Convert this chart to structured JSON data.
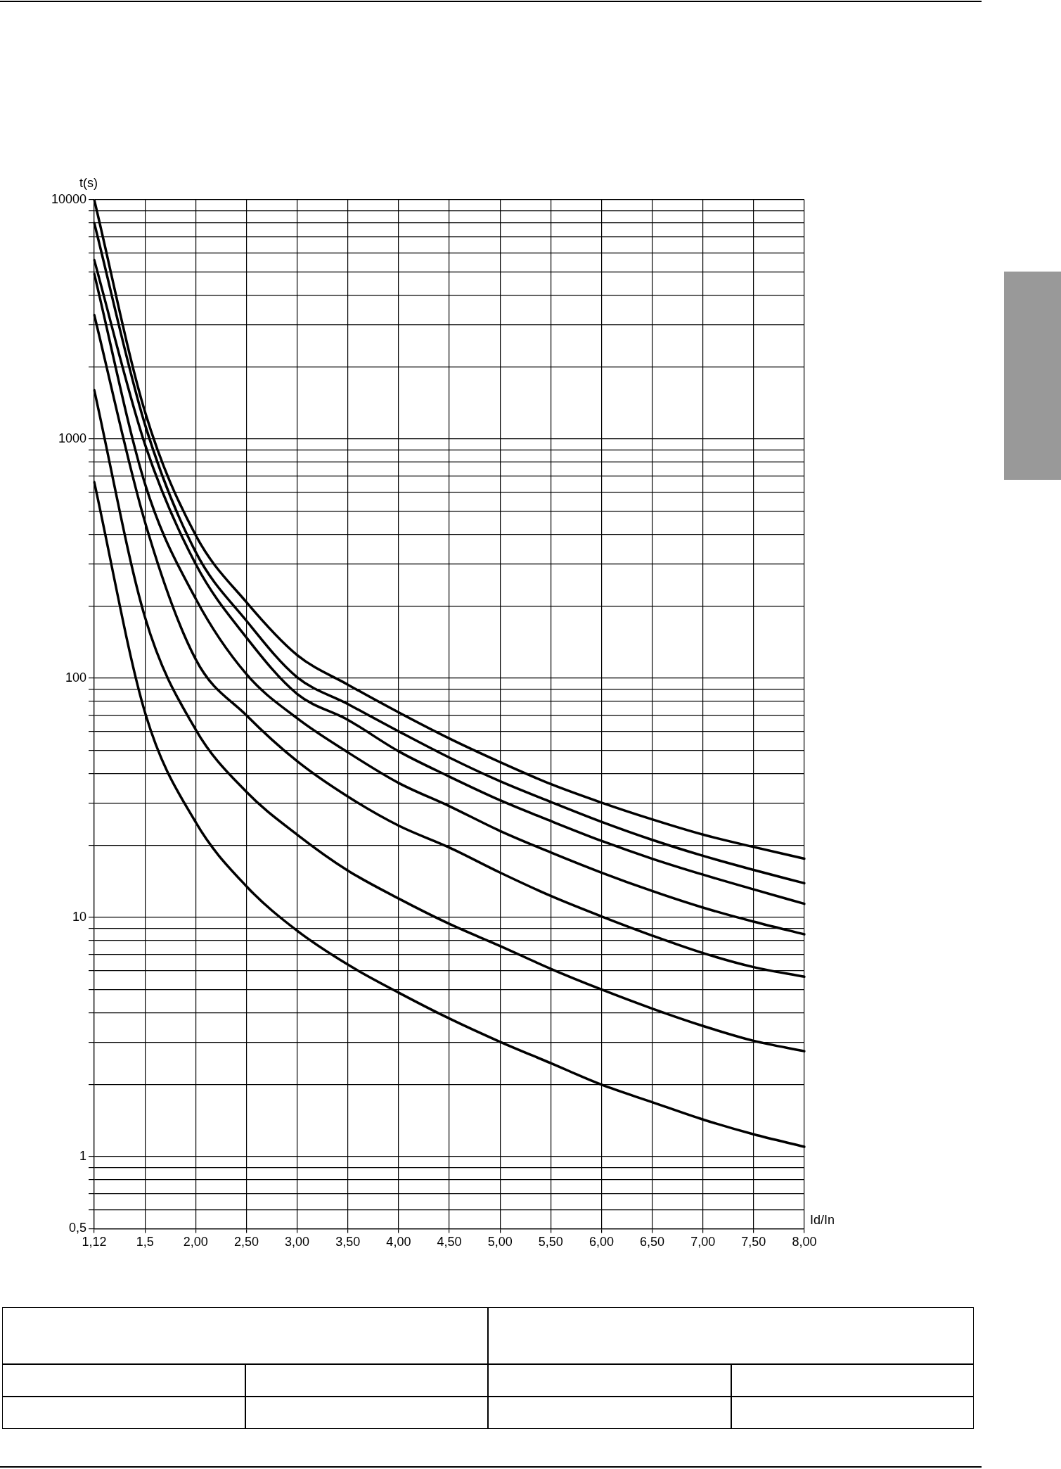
{
  "chart_data": {
    "type": "line",
    "xlabel": "Id/In",
    "ylabel": "t(s)",
    "categories": [
      "1,12",
      "1,5",
      "2,00",
      "2,50",
      "3,00",
      "3,50",
      "4,00",
      "4,50",
      "5,00",
      "5,50",
      "6,00",
      "6,50",
      "7,00",
      "7,50",
      "8,00"
    ],
    "series": [
      {
        "color": "#000000",
        "values": [
          10000,
          1300,
          396,
          208,
          125,
          94,
          72,
          56,
          44.6,
          36.1,
          30.2,
          25.7,
          22.2,
          19.7,
          17.6
        ]
      },
      {
        "color": "#000000",
        "values": [
          8000,
          1150,
          337,
          174,
          101,
          78,
          60,
          46.6,
          37.1,
          30.4,
          25.1,
          21.1,
          18.1,
          15.8,
          13.9
        ]
      },
      {
        "color": "#000000",
        "values": [
          5600,
          950,
          300,
          148,
          86,
          67,
          49.5,
          38.8,
          30.9,
          25.3,
          20.9,
          17.6,
          15.1,
          13.1,
          11.4
        ]
      },
      {
        "color": "#000000",
        "values": [
          4900,
          650,
          215,
          104,
          68,
          49,
          36.5,
          29.2,
          23,
          18.7,
          15.4,
          12.9,
          11,
          9.6,
          8.5
        ]
      },
      {
        "color": "#000000",
        "values": [
          3300,
          450,
          120,
          70,
          45,
          32,
          24.2,
          19.6,
          15.4,
          12.3,
          10.1,
          8.4,
          7.1,
          6.2,
          5.65
        ]
      },
      {
        "color": "#000000",
        "values": [
          1600,
          180,
          61,
          33.5,
          22.2,
          15.7,
          12,
          9.4,
          7.6,
          6.1,
          5,
          4.16,
          3.52,
          3.05,
          2.76
        ]
      },
      {
        "color": "#000000",
        "values": [
          660,
          72,
          25,
          13.5,
          8.8,
          6.35,
          4.85,
          3.78,
          3.02,
          2.46,
          2,
          1.69,
          1.43,
          1.24,
          1.1
        ]
      }
    ],
    "ylim": [
      0.5,
      10000
    ],
    "yticks": [
      {
        "value": 0.5,
        "label": "0,5"
      },
      {
        "value": 0.6,
        "label": null
      },
      {
        "value": 0.7,
        "label": null
      },
      {
        "value": 0.8,
        "label": null
      },
      {
        "value": 0.9,
        "label": null
      },
      1,
      {
        "value": 2,
        "label": null
      },
      {
        "value": 3,
        "label": null
      },
      {
        "value": 4,
        "label": null
      },
      {
        "value": 5,
        "label": null
      },
      {
        "value": 6,
        "label": null
      },
      {
        "value": 7,
        "label": null
      },
      {
        "value": 8,
        "label": null
      },
      {
        "value": 9,
        "label": null
      },
      10,
      {
        "value": 20,
        "label": null
      },
      {
        "value": 30,
        "label": null
      },
      {
        "value": 40,
        "label": null
      },
      {
        "value": 50,
        "label": null
      },
      {
        "value": 60,
        "label": null
      },
      {
        "value": 70,
        "label": null
      },
      {
        "value": 80,
        "label": null
      },
      {
        "value": 90,
        "label": null
      },
      100,
      {
        "value": 200,
        "label": null
      },
      {
        "value": 300,
        "label": null
      },
      {
        "value": 400,
        "label": null
      },
      {
        "value": 500,
        "label": null
      },
      {
        "value": 600,
        "label": null
      },
      {
        "value": 700,
        "label": null
      },
      {
        "value": 800,
        "label": null
      },
      {
        "value": 900,
        "label": null
      },
      1000,
      {
        "value": 2000,
        "label": null
      },
      {
        "value": 3000,
        "label": null
      },
      {
        "value": 4000,
        "label": null
      },
      {
        "value": 5000,
        "label": null
      },
      {
        "value": 6000,
        "label": null
      },
      {
        "value": 7000,
        "label": null
      },
      {
        "value": 8000,
        "label": null
      },
      {
        "value": 9000,
        "label": null
      },
      10000
    ],
    "log": "y",
    "grid": true,
    "legend": false,
    "marker": "none",
    "line_style": "solid"
  }
}
